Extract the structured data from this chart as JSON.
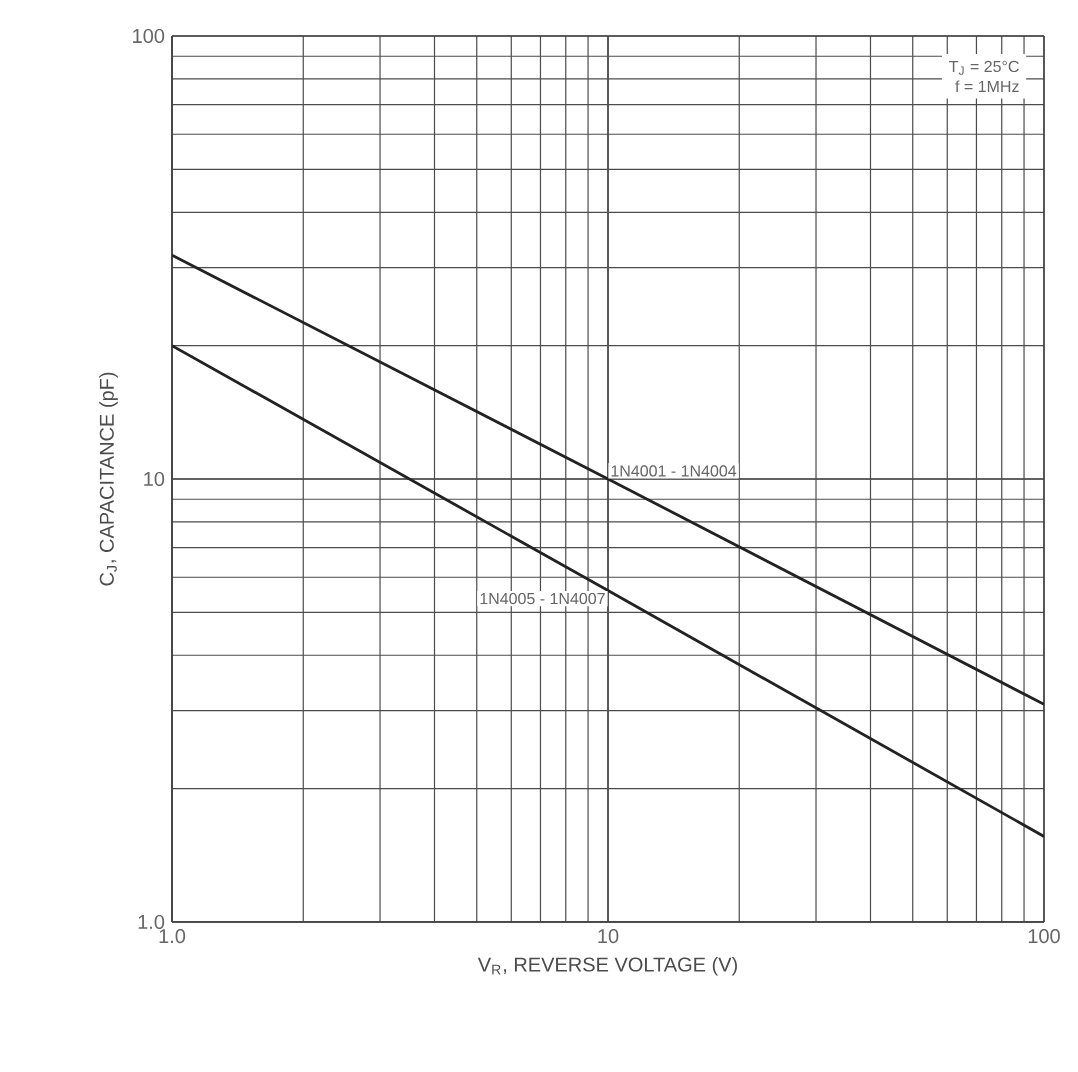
{
  "chart_data": {
    "type": "line",
    "xlabel": "V$_{R}$, REVERSE VOLTAGE (V)",
    "ylabel": "C$_{J}$, CAPACITANCE (pF)",
    "x": [
      1,
      10,
      100
    ],
    "series": [
      {
        "name": "1N4001 - 1N4004",
        "color": "#222222",
        "values": [
          32,
          10,
          3.1
        ]
      },
      {
        "name": "1N4005 - 1N4007",
        "color": "#222222",
        "values": [
          20,
          5.6,
          1.56
        ]
      }
    ],
    "annotations": [
      "T$_{J}$ = 25°C",
      "f = 1MHz"
    ],
    "log": "xy",
    "xlim": [
      1,
      100
    ],
    "ylim": [
      1,
      100
    ],
    "xticks": [
      {
        "value": 1,
        "label": "1.0"
      },
      10,
      100
    ],
    "yticks": [
      {
        "value": 1,
        "label": "1.0"
      },
      10,
      100
    ],
    "grid": true,
    "marker": "none",
    "line_style": "solid"
  }
}
